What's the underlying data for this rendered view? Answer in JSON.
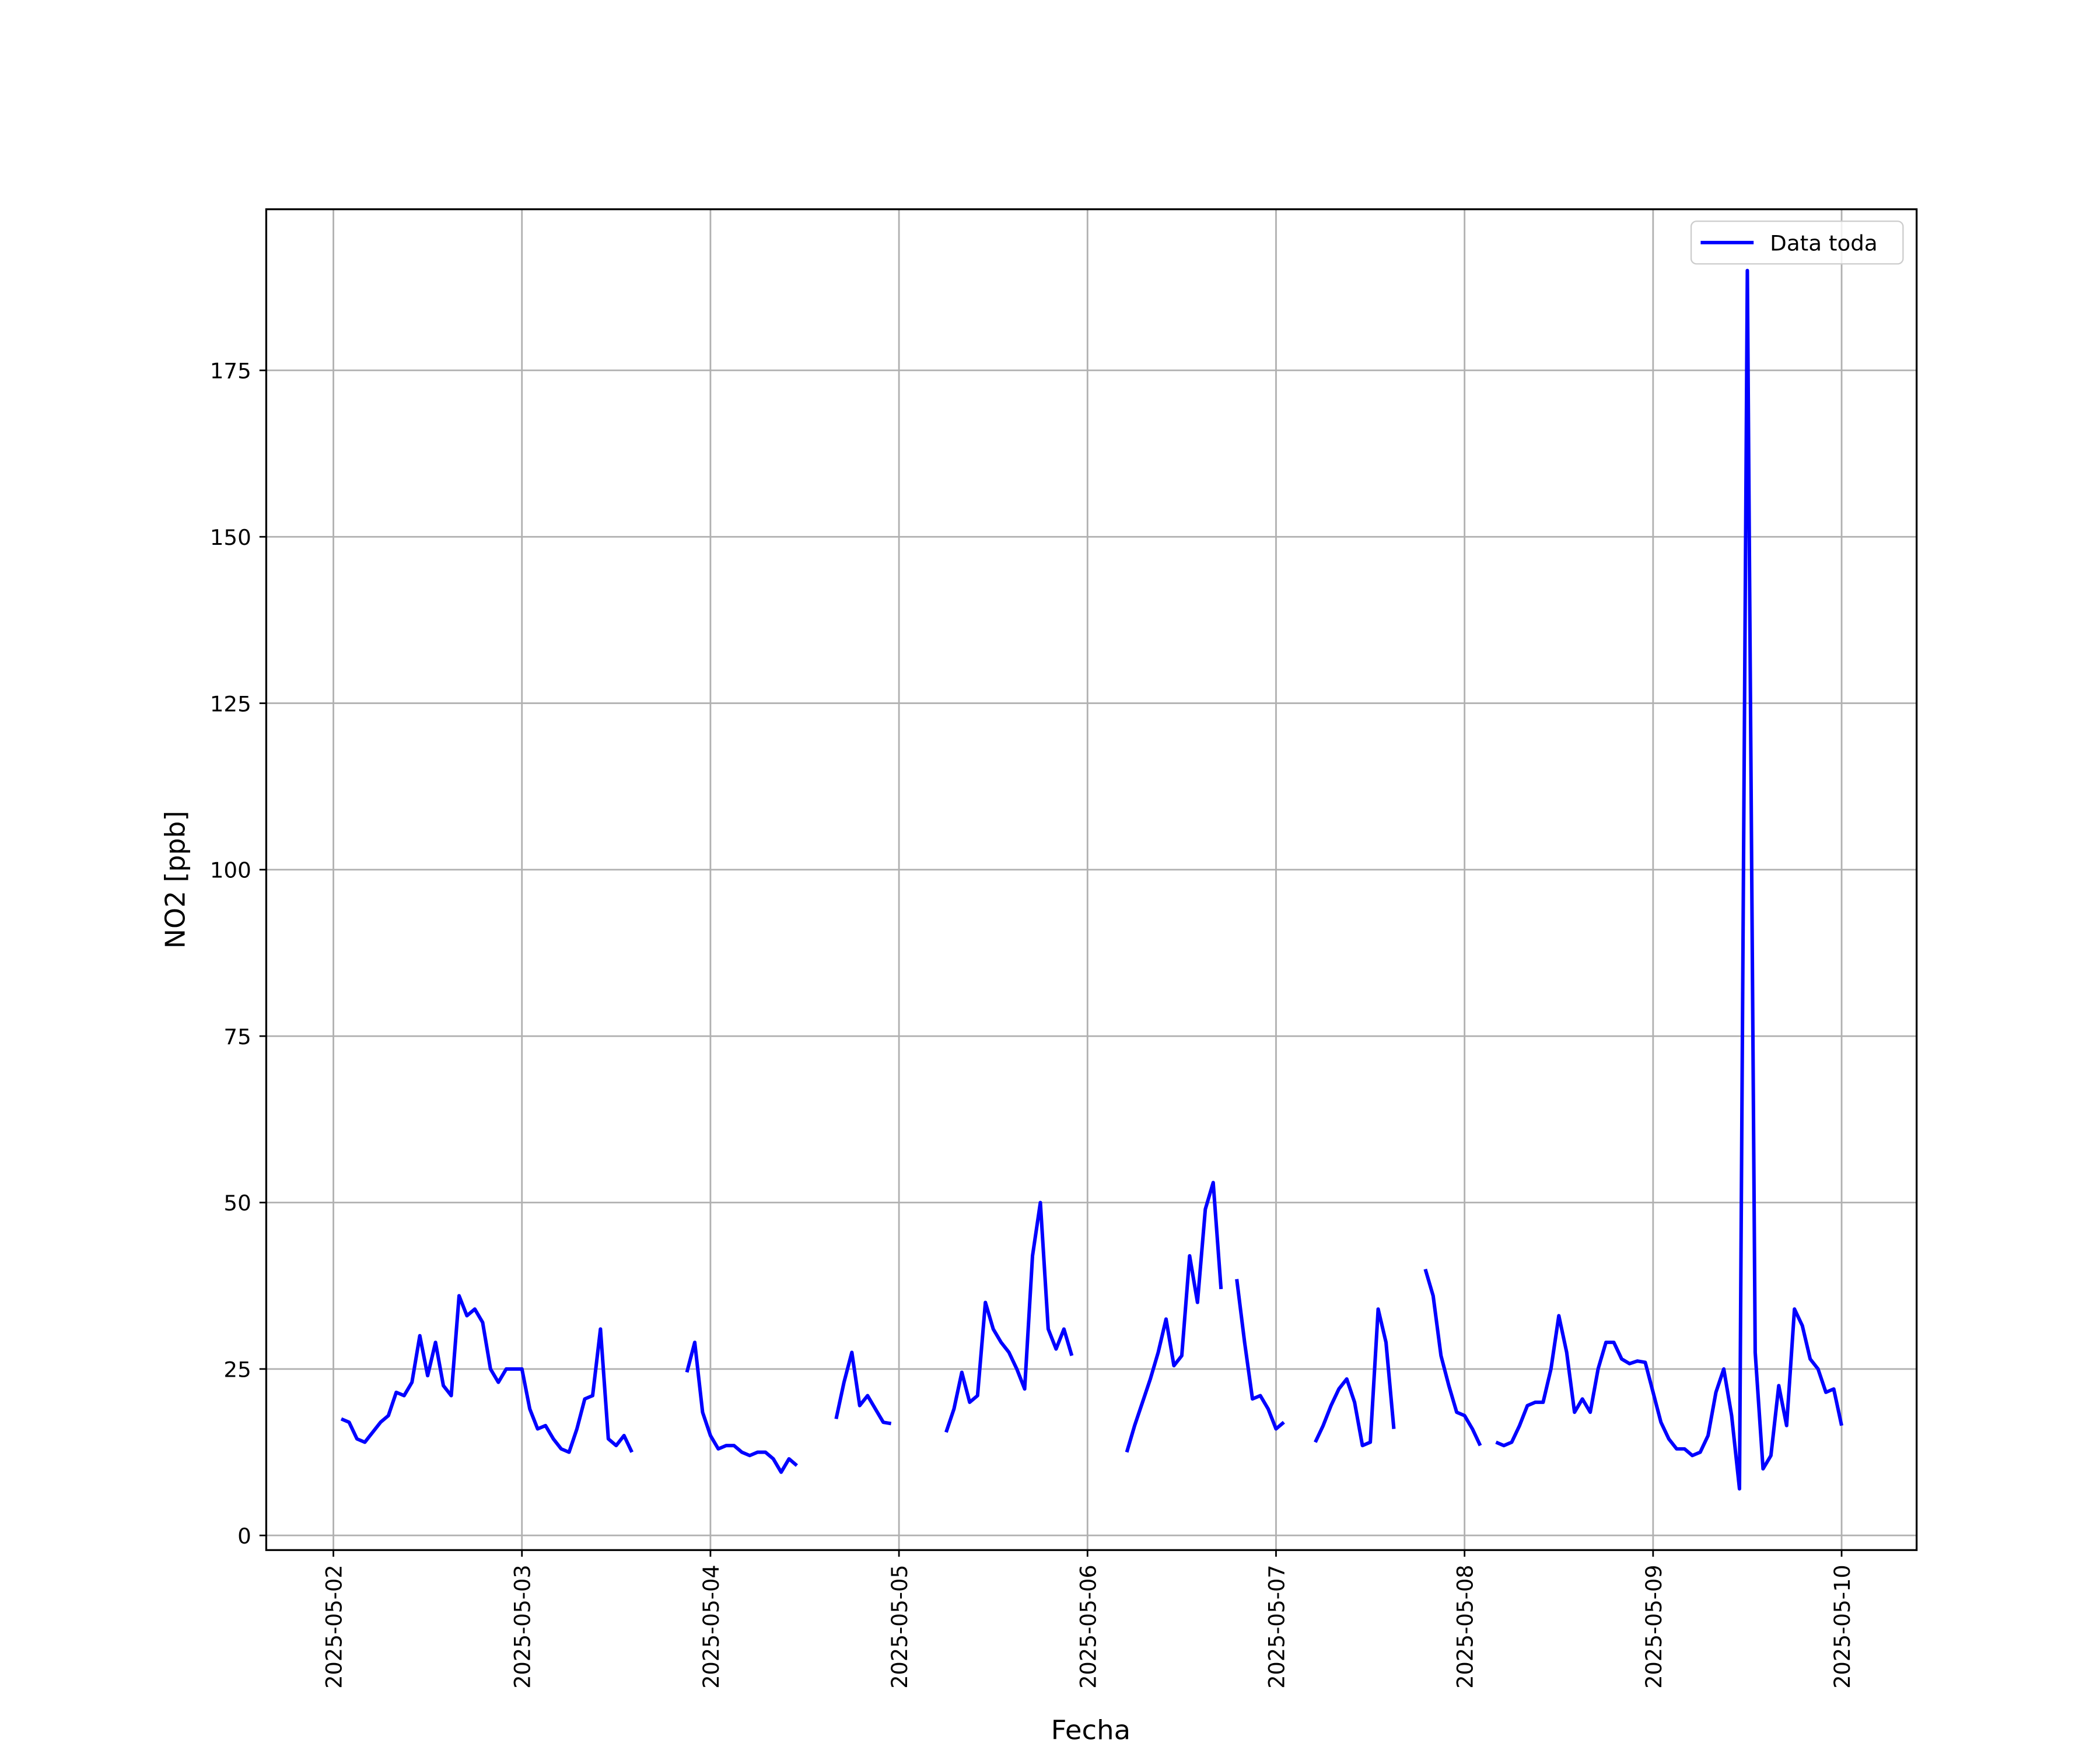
{
  "chart_data": {
    "type": "line",
    "xlabel": "Fecha",
    "ylabel": "NO2 [ppb]",
    "x": [
      "2025-05-02 01:00",
      "2025-05-02 02:00",
      "2025-05-02 03:00",
      "2025-05-02 04:00",
      "2025-05-02 05:00",
      "2025-05-02 06:00",
      "2025-05-02 07:00",
      "2025-05-02 08:00",
      "2025-05-02 09:00",
      "2025-05-02 10:00",
      "2025-05-02 11:00",
      "2025-05-02 12:00",
      "2025-05-02 13:00",
      "2025-05-02 14:00",
      "2025-05-02 15:00",
      "2025-05-02 16:00",
      "2025-05-02 17:00",
      "2025-05-02 18:00",
      "2025-05-02 19:00",
      "2025-05-02 20:00",
      "2025-05-02 21:00",
      "2025-05-02 22:00",
      "2025-05-02 23:00",
      "2025-05-03 00:00",
      "2025-05-03 01:00",
      "2025-05-03 02:00",
      "2025-05-03 03:00",
      "2025-05-03 04:00",
      "2025-05-03 05:00",
      "2025-05-03 06:00",
      "2025-05-03 07:00",
      "2025-05-03 08:00",
      "2025-05-03 09:00",
      "2025-05-03 10:00",
      "2025-05-03 11:00",
      "2025-05-03 12:00",
      "2025-05-03 13:00",
      "2025-05-03 14:00",
      "2025-05-03 15:00",
      "2025-05-03 21:00",
      "2025-05-03 22:00",
      "2025-05-03 23:00",
      "2025-05-04 00:00",
      "2025-05-04 01:00",
      "2025-05-04 02:00",
      "2025-05-04 03:00",
      "2025-05-04 04:00",
      "2025-05-04 05:00",
      "2025-05-04 06:00",
      "2025-05-04 07:00",
      "2025-05-04 08:00",
      "2025-05-04 09:00",
      "2025-05-04 10:00",
      "2025-05-04 11:00",
      "2025-05-04 12:00",
      "2025-05-04 16:00",
      "2025-05-04 17:00",
      "2025-05-04 18:00",
      "2025-05-04 19:00",
      "2025-05-04 20:00",
      "2025-05-04 21:00",
      "2025-05-04 22:00",
      "2025-05-04 23:00",
      "2025-05-05 00:00",
      "2025-05-05 06:00",
      "2025-05-05 07:00",
      "2025-05-05 08:00",
      "2025-05-05 09:00",
      "2025-05-05 10:00",
      "2025-05-05 11:00",
      "2025-05-05 12:00",
      "2025-05-05 13:00",
      "2025-05-05 14:00",
      "2025-05-05 15:00",
      "2025-05-05 16:00",
      "2025-05-05 17:00",
      "2025-05-05 18:00",
      "2025-05-05 19:00",
      "2025-05-05 20:00",
      "2025-05-05 21:00",
      "2025-05-05 22:00",
      "2025-05-05 23:00",
      "2025-05-06 05:00",
      "2025-05-06 06:00",
      "2025-05-06 07:00",
      "2025-05-06 08:00",
      "2025-05-06 09:00",
      "2025-05-06 10:00",
      "2025-05-06 11:00",
      "2025-05-06 12:00",
      "2025-05-06 13:00",
      "2025-05-06 14:00",
      "2025-05-06 15:00",
      "2025-05-06 16:00",
      "2025-05-06 17:00",
      "2025-05-06 18:00",
      "2025-05-06 19:00",
      "2025-05-06 20:00",
      "2025-05-06 21:00",
      "2025-05-06 22:00",
      "2025-05-06 23:00",
      "2025-05-07 00:00",
      "2025-05-07 01:00",
      "2025-05-07 02:00",
      "2025-05-07 05:00",
      "2025-05-07 06:00",
      "2025-05-07 07:00",
      "2025-05-07 08:00",
      "2025-05-07 09:00",
      "2025-05-07 10:00",
      "2025-05-07 11:00",
      "2025-05-07 12:00",
      "2025-05-07 13:00",
      "2025-05-07 14:00",
      "2025-05-07 15:00",
      "2025-05-07 16:00",
      "2025-05-07 19:00",
      "2025-05-07 20:00",
      "2025-05-07 21:00",
      "2025-05-07 22:00",
      "2025-05-07 23:00",
      "2025-05-08 00:00",
      "2025-05-08 01:00",
      "2025-05-08 02:00",
      "2025-05-08 03:00",
      "2025-05-08 04:00",
      "2025-05-08 05:00",
      "2025-05-08 06:00",
      "2025-05-08 07:00",
      "2025-05-08 08:00",
      "2025-05-08 09:00",
      "2025-05-08 10:00",
      "2025-05-08 11:00",
      "2025-05-08 12:00",
      "2025-05-08 13:00",
      "2025-05-08 14:00",
      "2025-05-08 15:00",
      "2025-05-08 16:00",
      "2025-05-08 17:00",
      "2025-05-08 18:00",
      "2025-05-08 19:00",
      "2025-05-08 20:00",
      "2025-05-08 21:00",
      "2025-05-08 22:00",
      "2025-05-08 23:00",
      "2025-05-09 00:00",
      "2025-05-09 01:00",
      "2025-05-09 02:00",
      "2025-05-09 03:00",
      "2025-05-09 04:00",
      "2025-05-09 05:00",
      "2025-05-09 06:00",
      "2025-05-09 07:00",
      "2025-05-09 08:00",
      "2025-05-09 09:00",
      "2025-05-09 10:00",
      "2025-05-09 11:00",
      "2025-05-09 12:00",
      "2025-05-09 13:00",
      "2025-05-09 14:00",
      "2025-05-09 15:00",
      "2025-05-09 16:00",
      "2025-05-09 17:00",
      "2025-05-09 18:00",
      "2025-05-09 19:00",
      "2025-05-09 20:00",
      "2025-05-09 21:00",
      "2025-05-09 22:00",
      "2025-05-09 23:00",
      "2025-05-10 00:00"
    ],
    "series": [
      {
        "name": "Data toda",
        "color": "#0000ff",
        "values": [
          17.5,
          17,
          14.5,
          14,
          15.5,
          17,
          18,
          21.5,
          21,
          23,
          30,
          24,
          29,
          22.5,
          21,
          36,
          33,
          34,
          32,
          25,
          23,
          25,
          25,
          25,
          19,
          16,
          16.5,
          14.5,
          13,
          12.5,
          16,
          20.5,
          21,
          31,
          14.5,
          13.5,
          15,
          12.5,
          null,
          24.5,
          29,
          18.5,
          15,
          13,
          13.5,
          13.5,
          12.5,
          12,
          12.5,
          12.5,
          11.5,
          9.5,
          11.5,
          10.5,
          null,
          17.5,
          23,
          27.5,
          19.5,
          21,
          19,
          17,
          16.8,
          null,
          15.5,
          19,
          24.5,
          20,
          21,
          35,
          31,
          29,
          27.5,
          25,
          22,
          42,
          50,
          31,
          28,
          31,
          27,
          null,
          12.5,
          16.5,
          20,
          23.5,
          27.5,
          32.5,
          25.5,
          27,
          42,
          35,
          49,
          53,
          37,
          null,
          38.5,
          29,
          20.5,
          21,
          19,
          16,
          17,
          null,
          14,
          16.5,
          19.5,
          22,
          23.5,
          20,
          13.5,
          14,
          34,
          29,
          16,
          null,
          40,
          36,
          27,
          22.5,
          18.5,
          18,
          16,
          13.5,
          null,
          14,
          13.5,
          14,
          16.5,
          19.5,
          20,
          20,
          25,
          33,
          27.5,
          18.5,
          20.5,
          18.5,
          25,
          29,
          29,
          26.5,
          25.8,
          26.2,
          26,
          21.5,
          17,
          14.5,
          13,
          13,
          12,
          12.5,
          15,
          21.5,
          25,
          18,
          7,
          190,
          27.5,
          10,
          12,
          22.5,
          16.5,
          34,
          31.5,
          26.5,
          25,
          21.5,
          22,
          16.5
        ]
      }
    ],
    "xlim": [
      "2025-05-01 15:27",
      "2025-05-10 09:33"
    ],
    "xticks": [
      "2025-05-02",
      "2025-05-03",
      "2025-05-04",
      "2025-05-05",
      "2025-05-06",
      "2025-05-07",
      "2025-05-08",
      "2025-05-09",
      "2025-05-10"
    ],
    "ylim": [
      -2.2,
      199.2
    ],
    "yticks": [
      0,
      25,
      50,
      75,
      100,
      125,
      150,
      175
    ],
    "grid": true,
    "legend": "upper right"
  }
}
